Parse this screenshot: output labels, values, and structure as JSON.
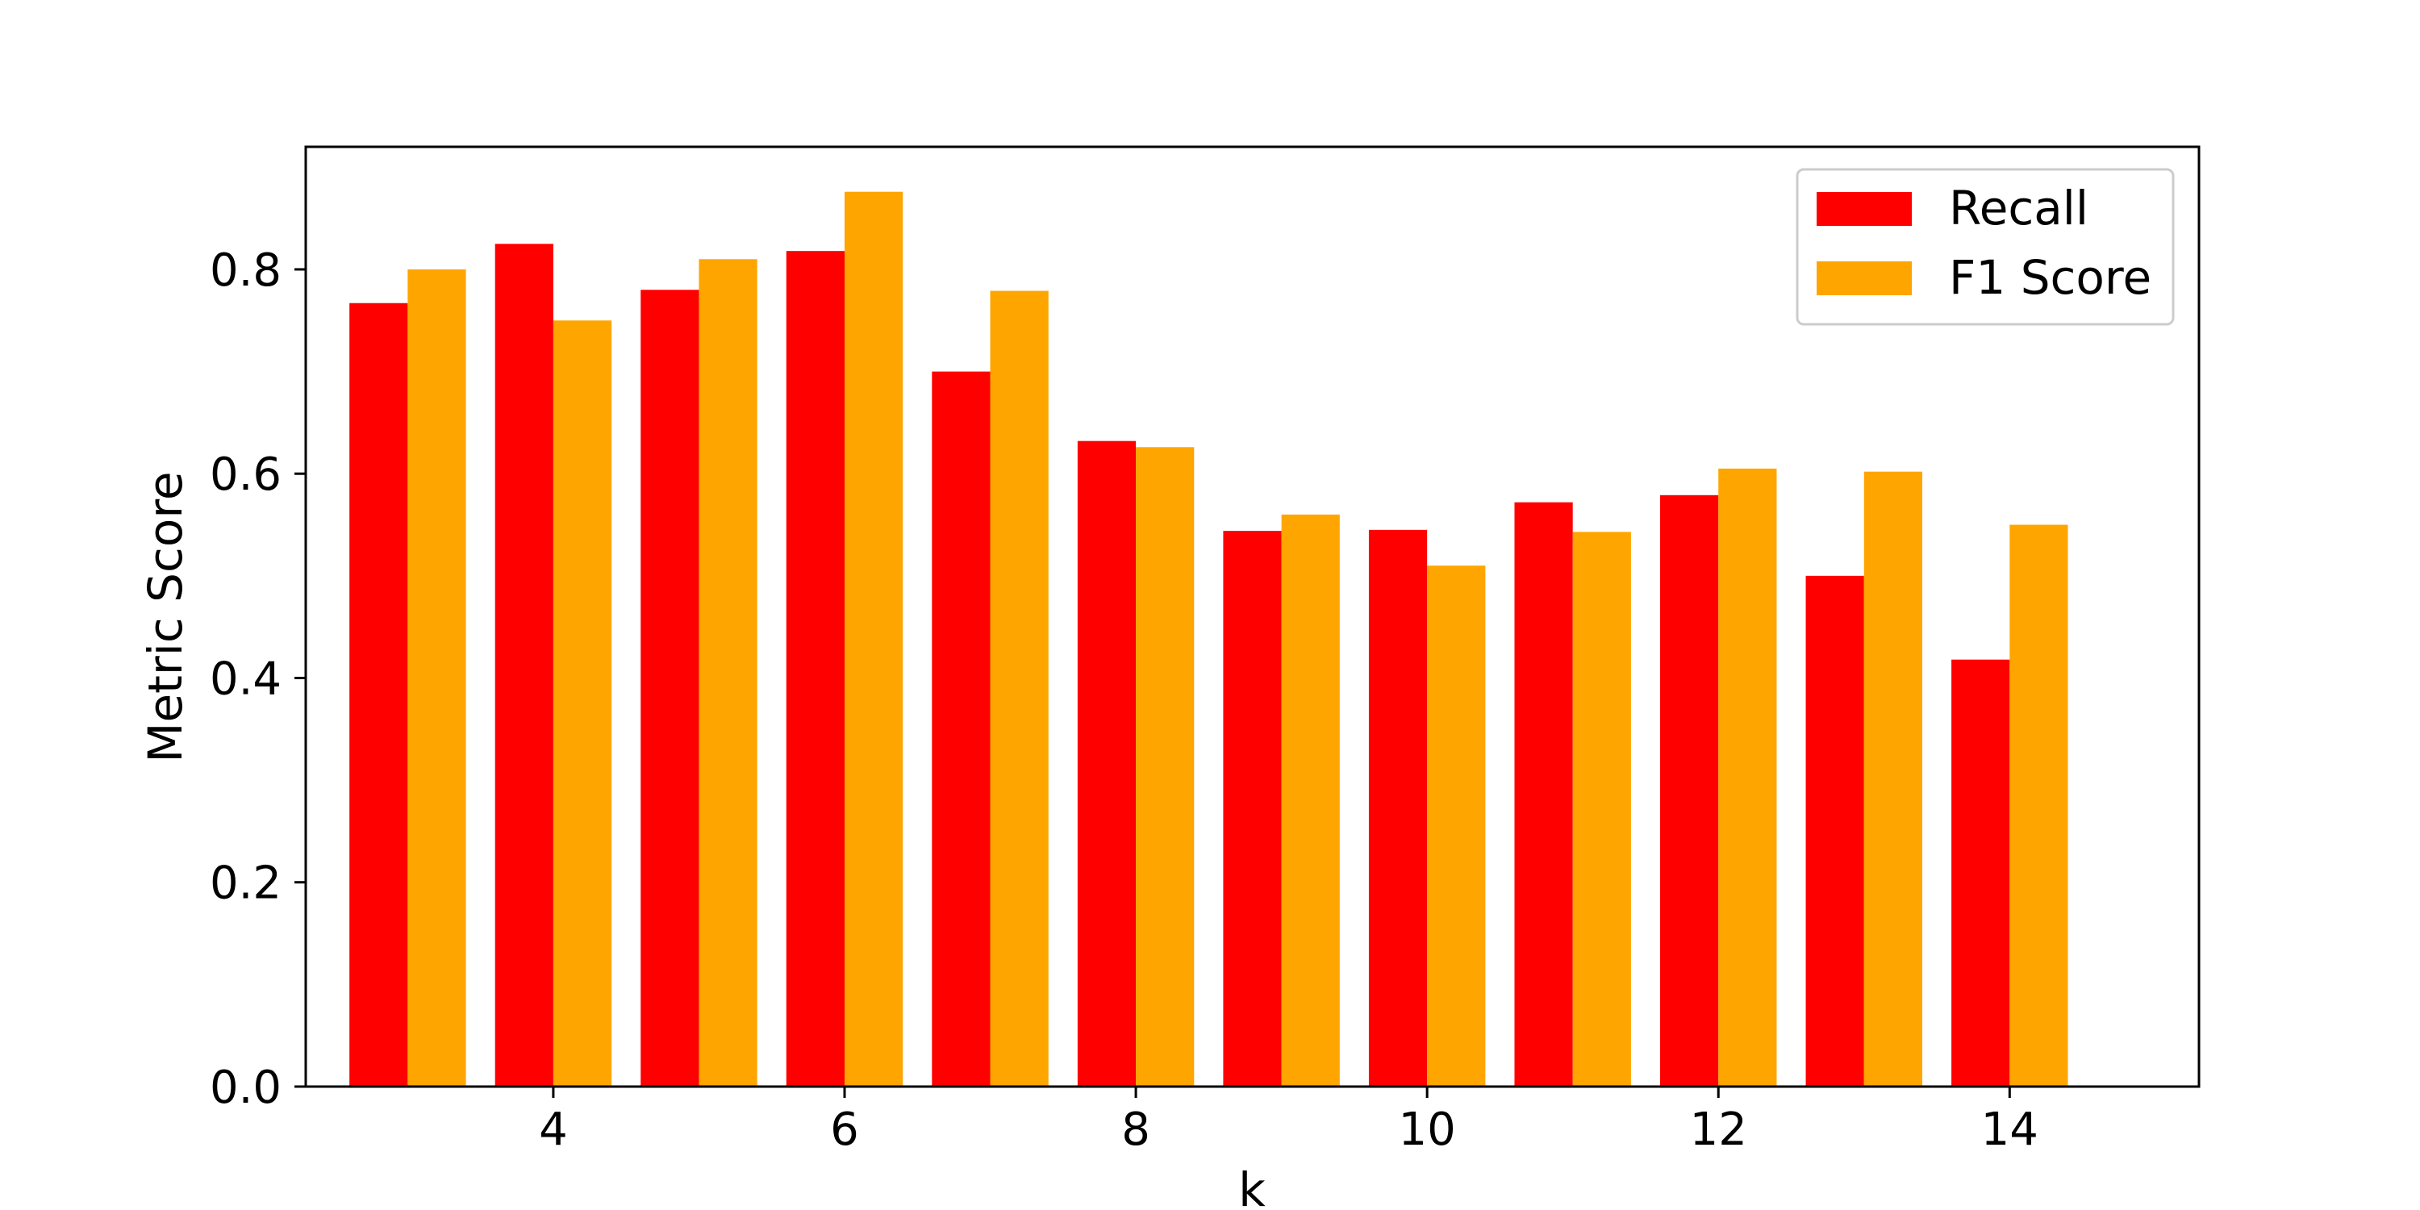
{
  "chart_data": {
    "type": "bar",
    "title": "",
    "xlabel": "k",
    "ylabel": "Metric Score",
    "categories": [
      3,
      4,
      5,
      6,
      7,
      8,
      9,
      10,
      11,
      12,
      13,
      14
    ],
    "series": [
      {
        "name": "Recall",
        "color": "#ff0000",
        "values": [
          0.767,
          0.825,
          0.78,
          0.818,
          0.7,
          0.632,
          0.544,
          0.545,
          0.572,
          0.579,
          0.5,
          0.418
        ]
      },
      {
        "name": "F1 Score",
        "color": "#ffa500",
        "values": [
          0.8,
          0.75,
          0.81,
          0.876,
          0.779,
          0.626,
          0.56,
          0.51,
          0.543,
          0.605,
          0.602,
          0.55
        ]
      }
    ],
    "xlim": [
      2.3,
      15.3
    ],
    "ylim": [
      0,
      0.92
    ],
    "xticks": [
      4,
      6,
      8,
      10,
      12,
      14
    ],
    "xtick_labels": [
      "4",
      "6",
      "8",
      "10",
      "12",
      "14"
    ],
    "yticks": [
      0.0,
      0.2,
      0.4,
      0.6,
      0.8
    ],
    "ytick_labels": [
      "0.0",
      "0.2",
      "0.4",
      "0.6",
      "0.8"
    ],
    "grid": false,
    "legend_position": "top-right"
  }
}
